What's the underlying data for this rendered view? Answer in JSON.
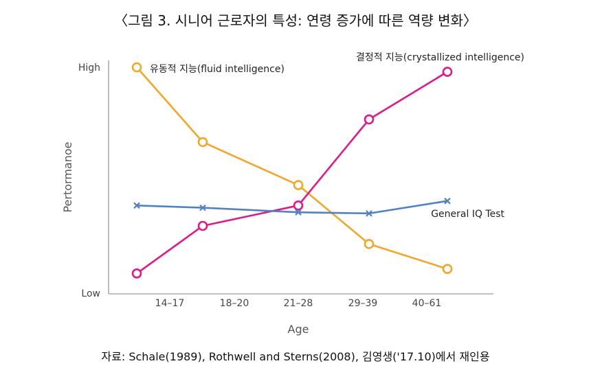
{
  "title": "〈그림 3. 시니어 근로자의 특성: 연령 증가에 따른 역량 변화〉",
  "source": "자료: Schale(1989), Rothwell and Sterns(2008), 김영생('17.10)에서 재인용",
  "chart_data": {
    "type": "line",
    "xlabel": "Age",
    "ylabel": "Pertormanoe",
    "y_tick_labels": [
      "Low",
      "High"
    ],
    "ylim": [
      0,
      100
    ],
    "categories": [
      "14-17",
      "18-20",
      "21-28",
      "29-39",
      "40-61"
    ],
    "grid": false,
    "series": [
      {
        "name": "유동적 지능(fluid intelligence)",
        "color": "#f5a623",
        "marker": "circle",
        "values": [
          100,
          67,
          48,
          22,
          11
        ]
      },
      {
        "name": "결정적 지능(crystallized intelligence)",
        "color": "#e6168a",
        "marker": "circle",
        "values": [
          9,
          30,
          39,
          77,
          98
        ]
      },
      {
        "name": "General IQ Test",
        "color": "#4f81c7",
        "marker": "x",
        "values": [
          39,
          38,
          36,
          35.5,
          41
        ]
      }
    ]
  }
}
